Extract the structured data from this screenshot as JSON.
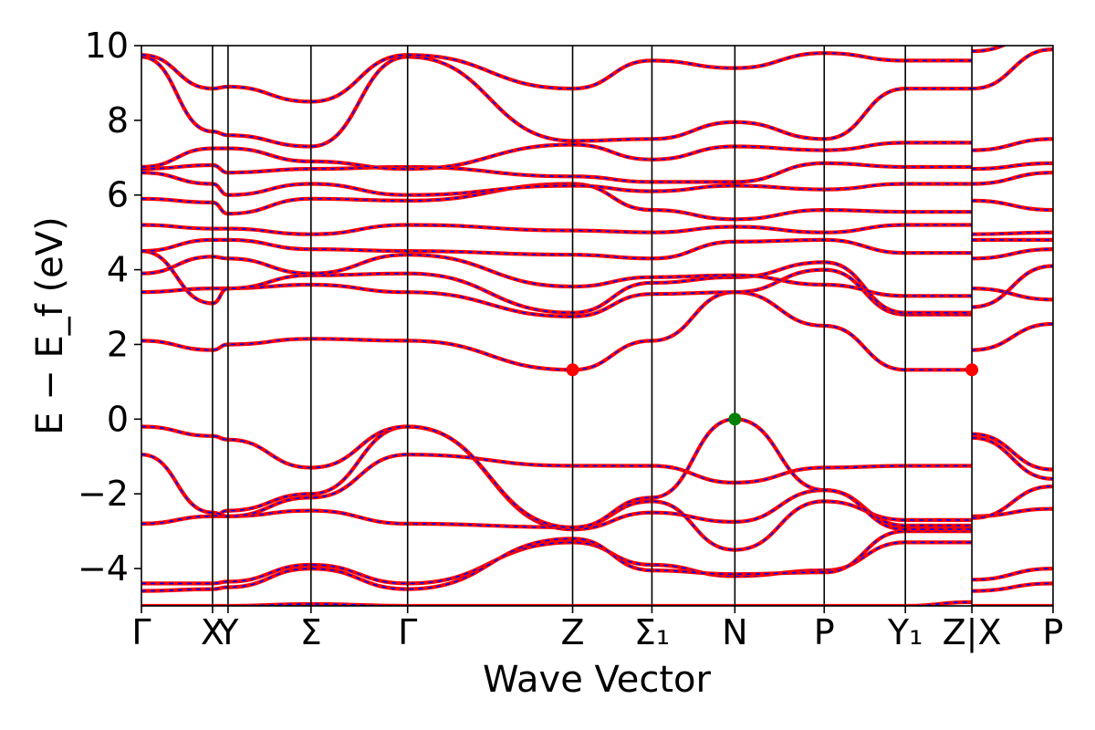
{
  "chart_data": {
    "type": "line",
    "title": "",
    "xlabel": "Wave Vector",
    "ylabel": "E − E_f (eV)",
    "ylim": [
      -5,
      10
    ],
    "yticks": [
      -4,
      -2,
      0,
      2,
      4,
      6,
      8,
      10
    ],
    "grid": false,
    "legend": "none",
    "kpath": {
      "labels": [
        "Γ",
        "X",
        "Y",
        "Σ",
        "Γ",
        "Z",
        "Σ1",
        "N",
        "P",
        "Y1",
        "Z",
        "X",
        "P"
      ],
      "positions": [
        0.0,
        0.078,
        0.095,
        0.186,
        0.292,
        0.473,
        0.56,
        0.651,
        0.749,
        0.838,
        0.911,
        0.911,
        1.0
      ],
      "segment_break_label": "|"
    },
    "line_styles": {
      "series_a": {
        "color": "#ff0000",
        "style": "solid"
      },
      "series_b": {
        "color": "#0000ff",
        "style": "dashed"
      }
    },
    "special_points": [
      {
        "k": 0.473,
        "energy": 1.32,
        "color": "#ff0000"
      },
      {
        "k": 0.911,
        "energy": 1.32,
        "color": "#ff0000"
      },
      {
        "k": 0.651,
        "energy": 0.0,
        "color": "#008000"
      }
    ],
    "bands": [
      [
        -5.0,
        -5.0,
        -5.0,
        -4.95,
        -5.0,
        -5.0,
        -5.0,
        -5.0,
        -5.0,
        -5.0,
        -4.9,
        -5.0,
        -5.0
      ],
      [
        -4.4,
        -4.4,
        -4.35,
        -3.9,
        -4.4,
        -3.3,
        -3.9,
        -4.2,
        -4.05,
        -3.3,
        -3.3,
        -4.3,
        -4.0
      ],
      [
        -4.6,
        -4.55,
        -4.5,
        -4.0,
        -4.55,
        -3.2,
        -4.05,
        -4.15,
        -4.1,
        -3.0,
        -3.0,
        -4.6,
        -4.4
      ],
      [
        -2.8,
        -2.6,
        -2.6,
        -2.45,
        -2.8,
        -2.9,
        -2.2,
        -3.5,
        -2.2,
        -2.7,
        -2.7,
        -2.6,
        -2.4
      ],
      [
        -2.8,
        -2.6,
        -2.45,
        -2.0,
        -0.2,
        -2.95,
        -2.5,
        -2.75,
        -1.9,
        -2.85,
        -2.85,
        -2.65,
        -1.8
      ],
      [
        -0.95,
        -2.5,
        -2.6,
        -2.1,
        -0.95,
        -1.25,
        -1.25,
        -1.7,
        -1.3,
        -1.25,
        -1.25,
        -0.4,
        -1.35
      ],
      [
        -0.2,
        -0.45,
        -0.55,
        -1.3,
        -0.2,
        -2.9,
        -2.1,
        0.0,
        -1.9,
        -2.95,
        -2.95,
        -0.5,
        -1.6
      ],
      [
        2.1,
        1.85,
        2.0,
        2.15,
        2.1,
        1.32,
        2.1,
        3.4,
        2.5,
        1.32,
        1.32,
        1.85,
        2.55
      ],
      [
        3.4,
        3.5,
        3.5,
        3.6,
        3.4,
        2.75,
        3.35,
        3.4,
        4.0,
        2.8,
        2.8,
        3.5,
        3.2
      ],
      [
        4.5,
        3.1,
        3.5,
        3.85,
        3.9,
        2.85,
        3.65,
        3.8,
        4.2,
        2.85,
        2.85,
        3.0,
        4.1
      ],
      [
        3.9,
        4.35,
        4.3,
        3.9,
        4.4,
        3.55,
        3.8,
        3.85,
        3.6,
        3.3,
        3.3,
        4.3,
        4.55
      ],
      [
        4.5,
        4.8,
        4.8,
        4.55,
        4.5,
        4.4,
        4.3,
        4.75,
        4.8,
        4.45,
        4.45,
        4.8,
        4.8
      ],
      [
        5.2,
        5.1,
        5.1,
        4.95,
        5.2,
        5.05,
        5.0,
        5.15,
        5.0,
        5.2,
        5.2,
        4.95,
        5.0
      ],
      [
        5.9,
        5.8,
        5.5,
        5.9,
        5.85,
        6.3,
        5.6,
        5.35,
        5.6,
        5.55,
        5.55,
        5.85,
        5.6
      ],
      [
        6.6,
        6.3,
        6.0,
        6.3,
        6.0,
        6.25,
        6.1,
        6.25,
        6.15,
        6.3,
        6.3,
        6.3,
        6.6
      ],
      [
        6.7,
        6.8,
        6.6,
        6.7,
        6.75,
        6.5,
        6.35,
        6.35,
        6.85,
        6.75,
        6.75,
        6.7,
        6.85
      ],
      [
        6.75,
        7.25,
        7.25,
        6.9,
        6.7,
        7.35,
        6.95,
        7.3,
        7.2,
        7.4,
        7.4,
        7.2,
        7.5
      ],
      [
        9.7,
        7.7,
        7.6,
        7.3,
        9.7,
        7.45,
        7.5,
        7.95,
        7.5,
        8.85,
        8.85,
        8.85,
        9.9
      ],
      [
        9.75,
        8.85,
        8.9,
        8.5,
        9.75,
        8.85,
        9.6,
        9.4,
        9.8,
        9.6,
        9.6,
        9.85,
        10.4
      ]
    ]
  }
}
